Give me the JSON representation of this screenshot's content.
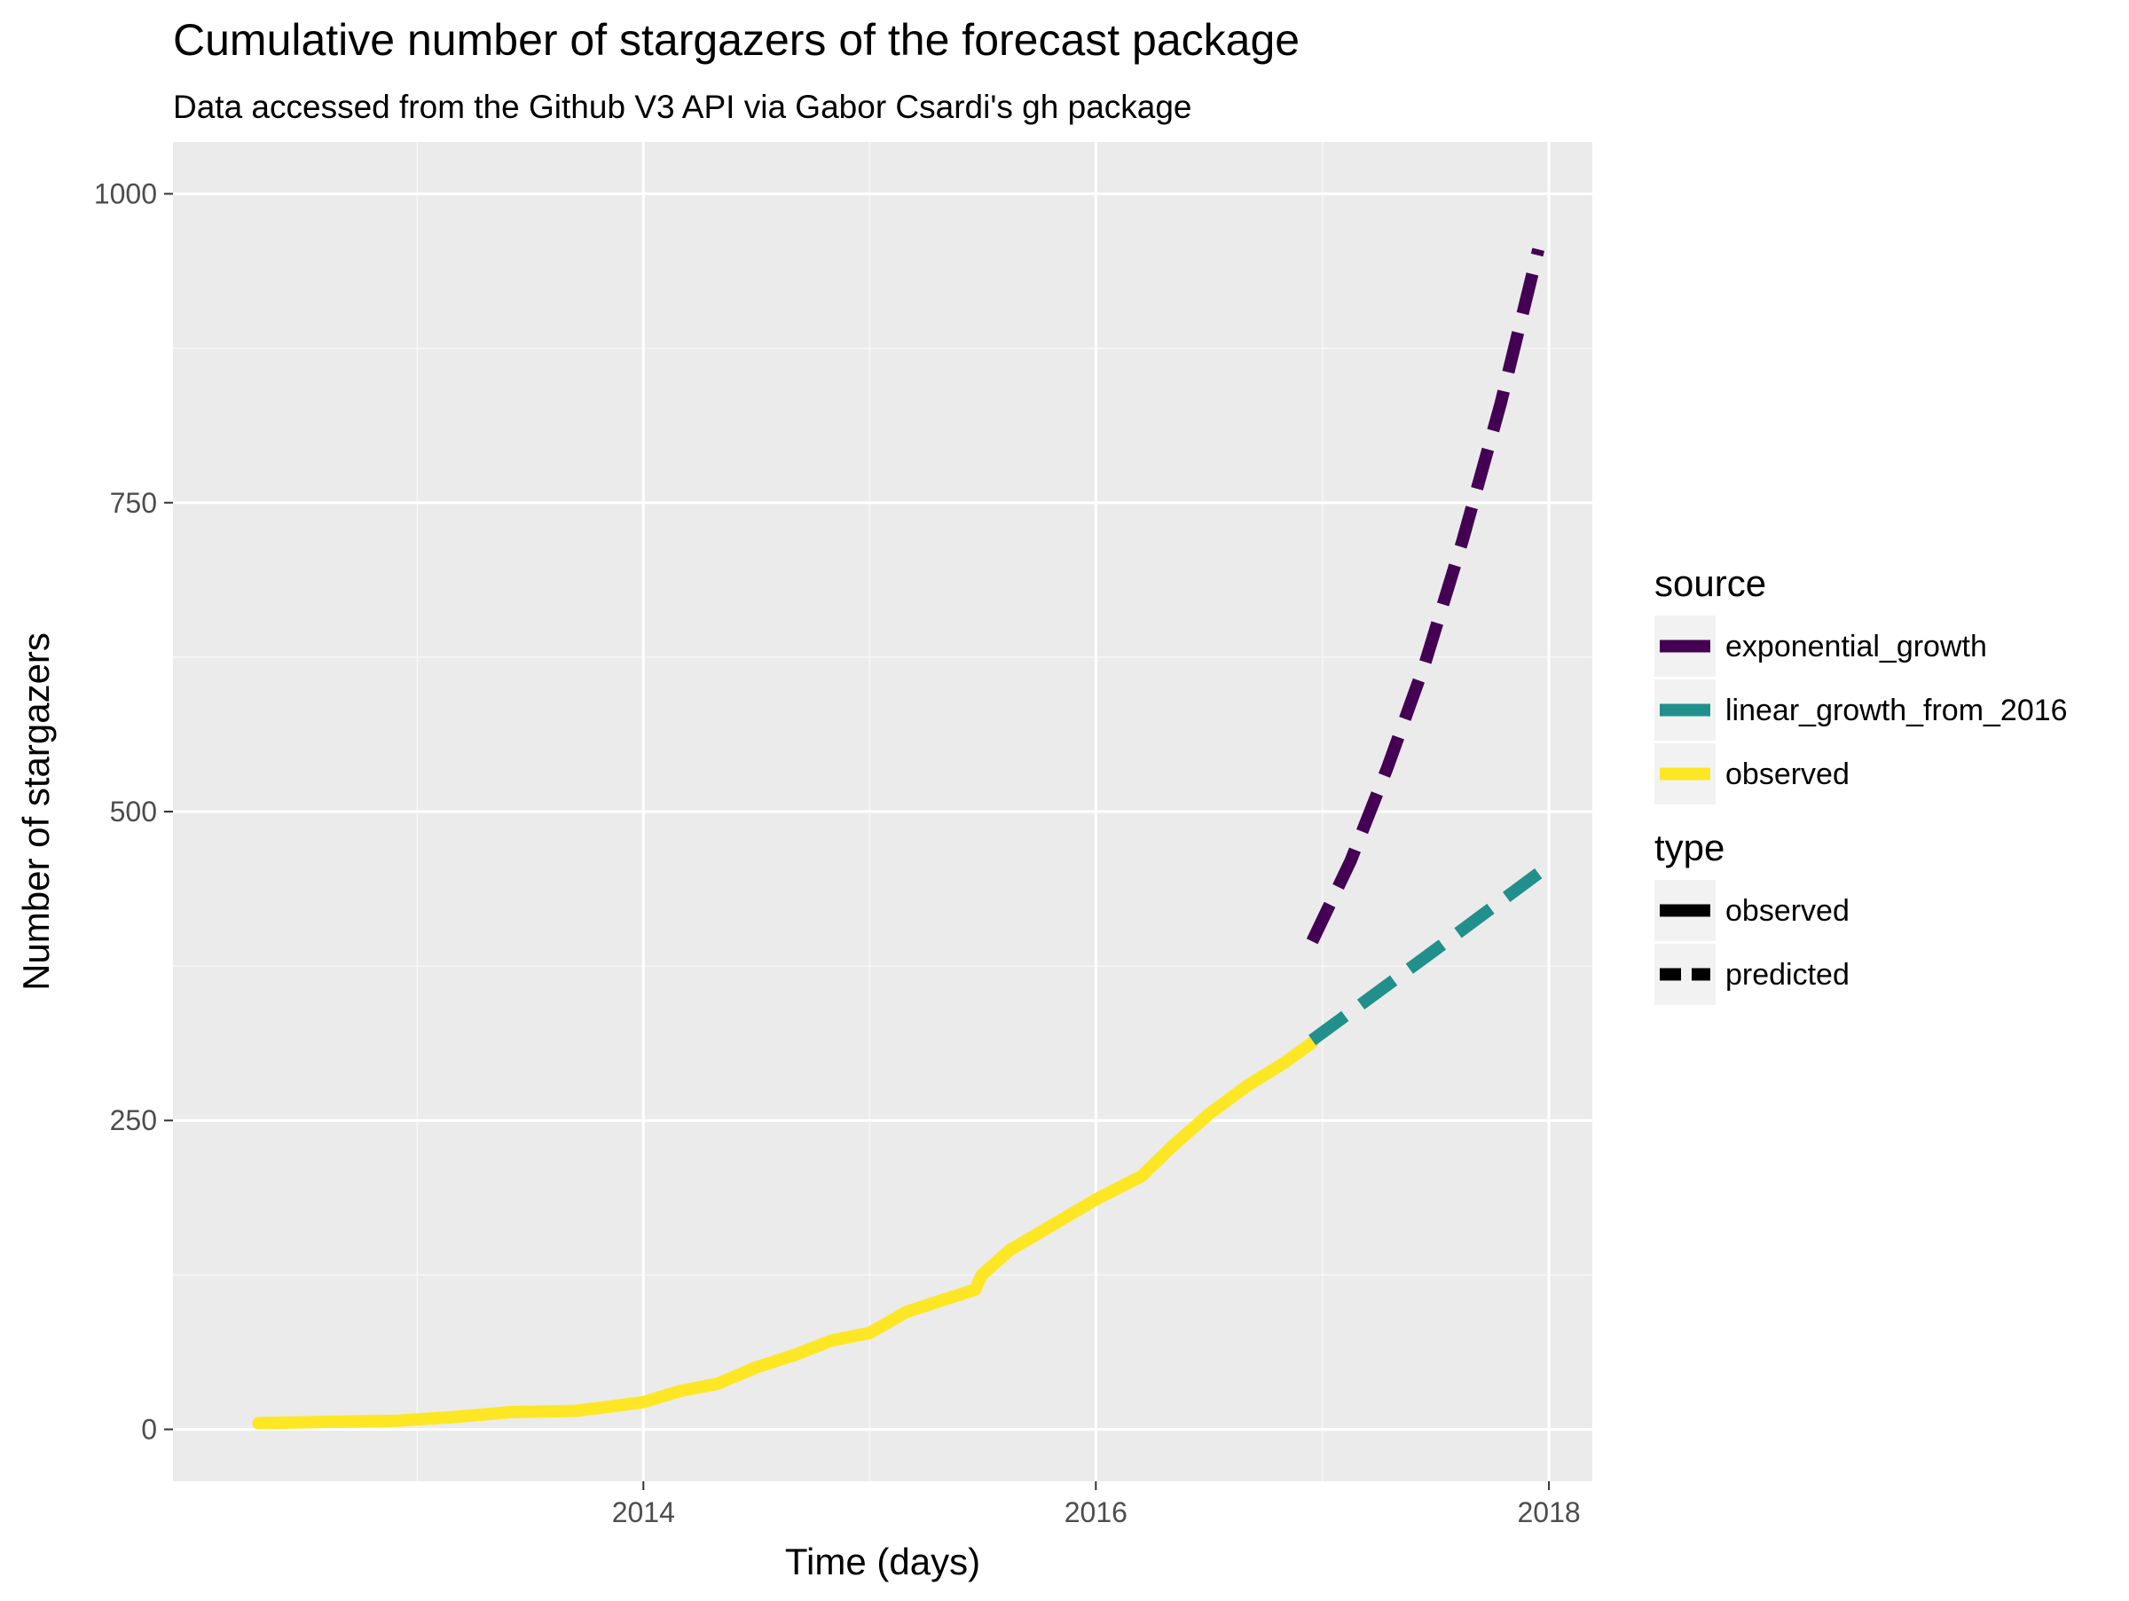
{
  "chart_data": {
    "type": "line",
    "title": "Cumulative number of stargazers of the forecast package",
    "subtitle": "Data accessed from the Github V3 API via Gabor Csardi's gh package",
    "xlabel": "Time (days)",
    "ylabel": "Number of stargazers",
    "x_is_date": true,
    "xlim": [
      "2011-12-04",
      "2018-03-12"
    ],
    "ylim": [
      -42,
      1000
    ],
    "x_ticks": [
      {
        "value": "2014-01-01",
        "label": "2014"
      },
      {
        "value": "2016-01-01",
        "label": "2016"
      },
      {
        "value": "2018-01-01",
        "label": "2018"
      }
    ],
    "x_minor_breaks": [
      "2013-01-01",
      "2015-01-01",
      "2017-01-01"
    ],
    "y_ticks": [
      {
        "value": 0,
        "label": "0"
      },
      {
        "value": 250,
        "label": "250"
      },
      {
        "value": 500,
        "label": "500"
      },
      {
        "value": 750,
        "label": "750"
      },
      {
        "value": 1000,
        "label": "1000"
      }
    ],
    "y_minor_breaks": [
      125,
      375,
      625,
      875
    ],
    "grid": true,
    "panel_background": "#ebebeb",
    "series": [
      {
        "name": "observed",
        "source": "observed",
        "type": "observed",
        "color": "#fde725",
        "dash": "solid",
        "points": [
          {
            "x": "2012-04-20",
            "y": 5
          },
          {
            "x": "2012-08-01",
            "y": 6
          },
          {
            "x": "2012-12-01",
            "y": 7
          },
          {
            "x": "2013-03-01",
            "y": 10
          },
          {
            "x": "2013-06-01",
            "y": 14
          },
          {
            "x": "2013-09-15",
            "y": 15
          },
          {
            "x": "2013-11-01",
            "y": 18
          },
          {
            "x": "2014-01-01",
            "y": 22
          },
          {
            "x": "2014-03-01",
            "y": 31
          },
          {
            "x": "2014-05-01",
            "y": 37
          },
          {
            "x": "2014-07-01",
            "y": 50
          },
          {
            "x": "2014-09-01",
            "y": 60
          },
          {
            "x": "2014-11-01",
            "y": 72
          },
          {
            "x": "2015-01-01",
            "y": 78
          },
          {
            "x": "2015-03-01",
            "y": 95
          },
          {
            "x": "2015-05-01",
            "y": 105
          },
          {
            "x": "2015-06-20",
            "y": 113
          },
          {
            "x": "2015-07-01",
            "y": 125
          },
          {
            "x": "2015-08-15",
            "y": 145
          },
          {
            "x": "2015-10-15",
            "y": 163
          },
          {
            "x": "2016-01-01",
            "y": 186
          },
          {
            "x": "2016-03-15",
            "y": 205
          },
          {
            "x": "2016-05-01",
            "y": 228
          },
          {
            "x": "2016-07-01",
            "y": 255
          },
          {
            "x": "2016-09-01",
            "y": 278
          },
          {
            "x": "2016-11-01",
            "y": 297
          },
          {
            "x": "2016-12-15",
            "y": 313
          }
        ]
      },
      {
        "name": "linear_growth_from_2016",
        "source": "linear_growth_from_2016",
        "type": "predicted",
        "color": "#21908c",
        "dash": "dashed",
        "points": [
          {
            "x": "2016-12-15",
            "y": 315
          },
          {
            "x": "2017-06-15",
            "y": 382
          },
          {
            "x": "2017-12-15",
            "y": 450
          }
        ]
      },
      {
        "name": "exponential_growth",
        "source": "exponential_growth",
        "type": "predicted",
        "color": "#440154",
        "dash": "dashed",
        "points": [
          {
            "x": "2016-12-15",
            "y": 395
          },
          {
            "x": "2017-02-15",
            "y": 460
          },
          {
            "x": "2017-04-15",
            "y": 535
          },
          {
            "x": "2017-06-15",
            "y": 620
          },
          {
            "x": "2017-08-15",
            "y": 720
          },
          {
            "x": "2017-10-15",
            "y": 830
          },
          {
            "x": "2017-12-15",
            "y": 955
          }
        ]
      }
    ],
    "legends": [
      {
        "title": "source",
        "placement": "right",
        "entries": [
          {
            "label": "exponential_growth",
            "color": "#440154",
            "dash": "solid"
          },
          {
            "label": "linear_growth_from_2016",
            "color": "#21908c",
            "dash": "solid"
          },
          {
            "label": "observed",
            "color": "#fde725",
            "dash": "solid"
          }
        ]
      },
      {
        "title": "type",
        "placement": "right",
        "entries": [
          {
            "label": "observed",
            "color": "#000000",
            "dash": "solid"
          },
          {
            "label": "predicted",
            "color": "#000000",
            "dash": "dashed"
          }
        ]
      }
    ]
  }
}
